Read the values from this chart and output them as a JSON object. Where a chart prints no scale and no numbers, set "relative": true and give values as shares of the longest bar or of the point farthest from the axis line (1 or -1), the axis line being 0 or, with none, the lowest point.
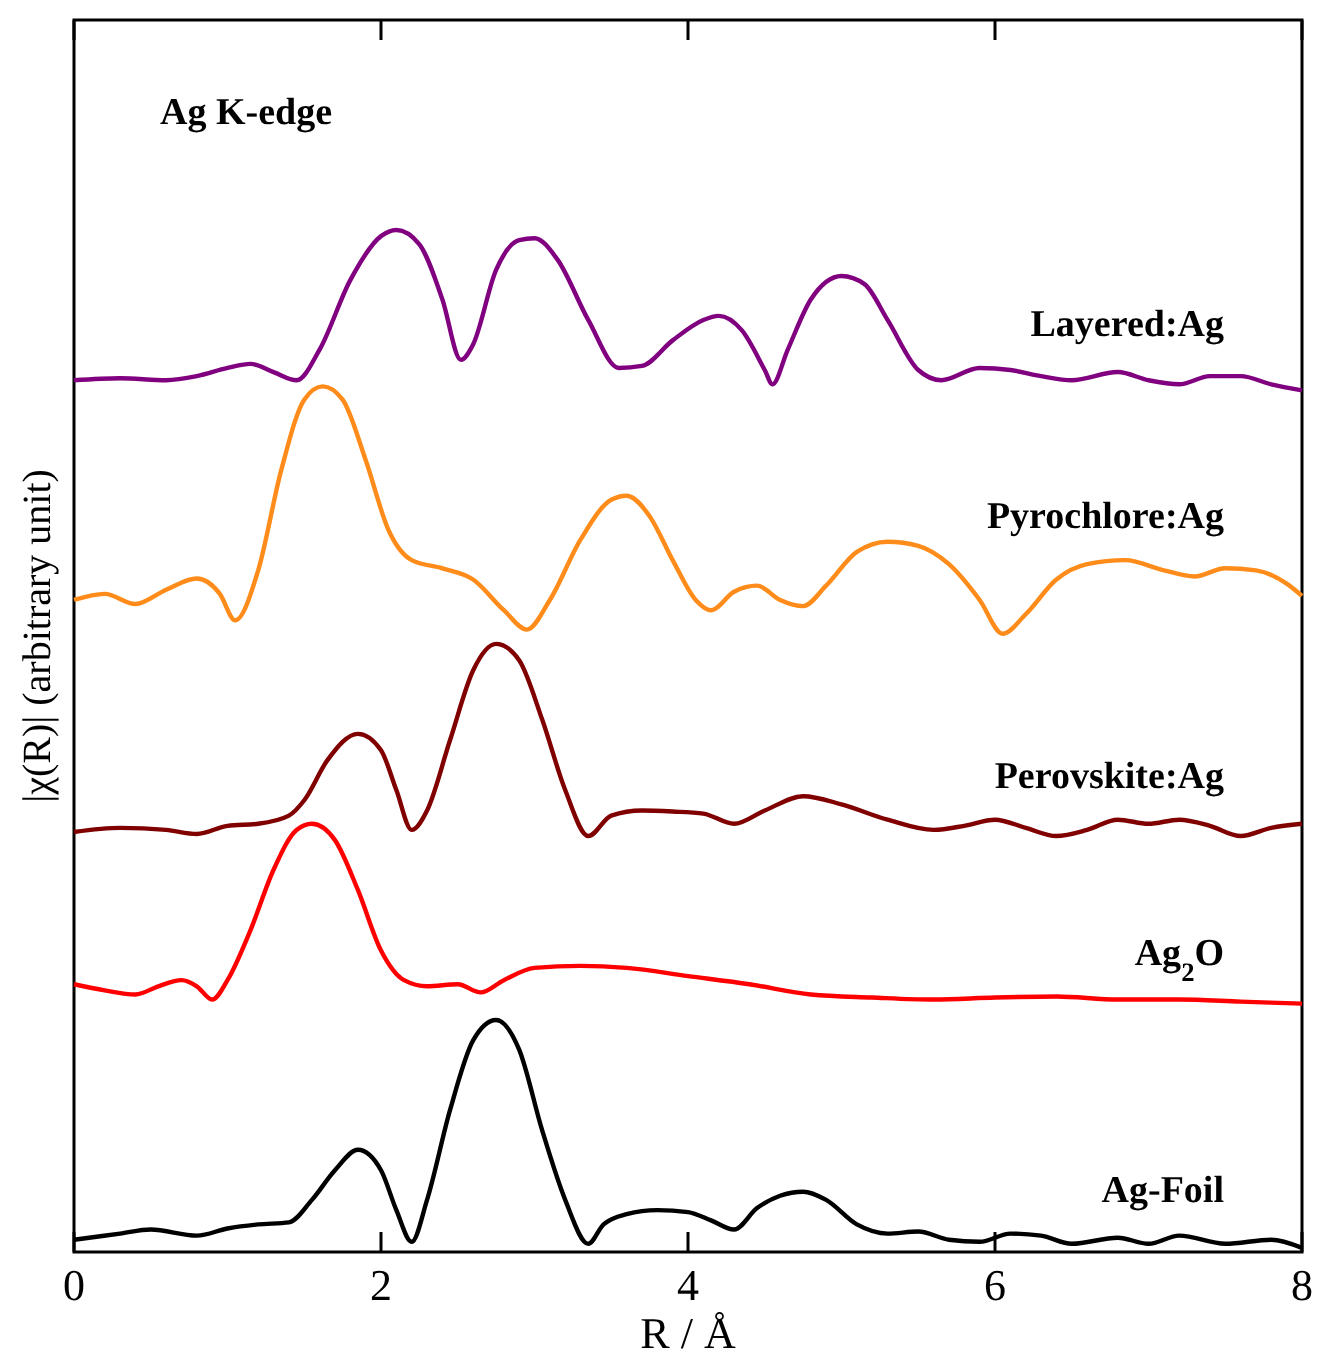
{
  "chart_data": {
    "type": "line",
    "relative": true,
    "title": "Ag K-edge",
    "xlabel": "R / Å",
    "ylabel": "|χ(R)| (arbitrary unit)",
    "xlim": [
      0,
      8
    ],
    "xticks": [
      0,
      2,
      4,
      6,
      8
    ],
    "series": [
      {
        "name": "Layered:Ag",
        "color": "#800080",
        "x": [
          0,
          0.3,
          0.6,
          0.8,
          1.0,
          1.15,
          1.3,
          1.45,
          1.6,
          1.8,
          2.0,
          2.1,
          2.25,
          2.4,
          2.52,
          2.6,
          2.75,
          2.9,
          3.0,
          3.15,
          3.35,
          3.55,
          3.7,
          3.9,
          4.1,
          4.2,
          4.35,
          4.5,
          4.55,
          4.65,
          4.8,
          5.0,
          5.15,
          5.3,
          5.5,
          5.65,
          5.9,
          6.1,
          6.3,
          6.5,
          6.8,
          7.0,
          7.2,
          7.4,
          7.6,
          7.8,
          8.0
        ],
        "values": [
          0.853,
          0.855,
          0.853,
          0.857,
          0.865,
          0.869,
          0.861,
          0.853,
          0.883,
          0.951,
          0.994,
          1,
          0.986,
          0.932,
          0.873,
          0.888,
          0.961,
          0.99,
          0.992,
          0.971,
          0.912,
          0.865,
          0.867,
          0.892,
          0.912,
          0.916,
          0.902,
          0.863,
          0.849,
          0.883,
          0.932,
          0.955,
          0.947,
          0.912,
          0.863,
          0.853,
          0.865,
          0.863,
          0.857,
          0.853,
          0.861,
          0.853,
          0.849,
          0.857,
          0.857,
          0.849,
          0.843
        ]
      },
      {
        "name": "Pyrochlore:Ag",
        "color": "#ff8c1a",
        "x": [
          0,
          0.2,
          0.4,
          0.6,
          0.8,
          0.95,
          1.05,
          1.2,
          1.35,
          1.5,
          1.62,
          1.75,
          1.9,
          2.05,
          2.2,
          2.4,
          2.6,
          2.8,
          2.95,
          3.1,
          3.3,
          3.5,
          3.6,
          3.75,
          3.9,
          4.05,
          4.15,
          4.3,
          4.45,
          4.6,
          4.75,
          4.9,
          5.1,
          5.3,
          5.5,
          5.7,
          5.9,
          6.05,
          6.2,
          6.4,
          6.6,
          6.85,
          7.1,
          7.3,
          7.5,
          7.7,
          7.9,
          8.0
        ],
        "values": [
          0.638,
          0.644,
          0.634,
          0.648,
          0.659,
          0.644,
          0.618,
          0.667,
          0.765,
          0.834,
          0.847,
          0.834,
          0.775,
          0.706,
          0.677,
          0.669,
          0.658,
          0.628,
          0.609,
          0.638,
          0.697,
          0.736,
          0.74,
          0.72,
          0.677,
          0.638,
          0.628,
          0.646,
          0.652,
          0.638,
          0.632,
          0.652,
          0.685,
          0.695,
          0.691,
          0.673,
          0.638,
          0.605,
          0.624,
          0.658,
          0.673,
          0.677,
          0.667,
          0.661,
          0.669,
          0.667,
          0.654,
          0.642
        ]
      },
      {
        "name": "Perovskite:Ag",
        "color": "#800000",
        "x": [
          0,
          0.3,
          0.6,
          0.8,
          1.0,
          1.2,
          1.4,
          1.5,
          1.65,
          1.85,
          2.0,
          2.1,
          2.2,
          2.3,
          2.45,
          2.6,
          2.75,
          2.9,
          3.05,
          3.2,
          3.35,
          3.5,
          3.7,
          3.9,
          4.1,
          4.3,
          4.5,
          4.75,
          5.0,
          5.3,
          5.6,
          5.8,
          6.0,
          6.2,
          6.4,
          6.6,
          6.8,
          7.0,
          7.2,
          7.4,
          7.6,
          7.8,
          8.0
        ],
        "values": [
          0.411,
          0.415,
          0.413,
          0.409,
          0.417,
          0.419,
          0.427,
          0.442,
          0.481,
          0.507,
          0.491,
          0.452,
          0.413,
          0.432,
          0.501,
          0.569,
          0.595,
          0.579,
          0.521,
          0.452,
          0.407,
          0.427,
          0.432,
          0.431,
          0.429,
          0.419,
          0.432,
          0.446,
          0.438,
          0.423,
          0.413,
          0.417,
          0.423,
          0.415,
          0.407,
          0.413,
          0.423,
          0.419,
          0.423,
          0.417,
          0.407,
          0.415,
          0.419
        ]
      },
      {
        "name": "Ag$_{2}$O",
        "color": "#ff0000",
        "x": [
          0,
          0.2,
          0.4,
          0.55,
          0.7,
          0.8,
          0.9,
          1.0,
          1.15,
          1.3,
          1.45,
          1.55,
          1.7,
          1.85,
          2.0,
          2.15,
          2.3,
          2.5,
          2.65,
          2.8,
          3.0,
          3.3,
          3.6,
          4.0,
          4.4,
          4.8,
          5.2,
          5.6,
          6.0,
          6.4,
          6.8,
          7.2,
          7.6,
          8.0
        ],
        "values": [
          0.262,
          0.256,
          0.252,
          0.26,
          0.266,
          0.26,
          0.247,
          0.266,
          0.315,
          0.374,
          0.413,
          0.419,
          0.403,
          0.354,
          0.295,
          0.266,
          0.26,
          0.262,
          0.254,
          0.266,
          0.278,
          0.28,
          0.278,
          0.27,
          0.262,
          0.252,
          0.249,
          0.247,
          0.249,
          0.25,
          0.247,
          0.247,
          0.245,
          0.243
        ]
      },
      {
        "name": "Ag-Foil",
        "color": "#000000",
        "x": [
          0,
          0.3,
          0.5,
          0.8,
          1.0,
          1.2,
          1.4,
          1.55,
          1.7,
          1.85,
          2.0,
          2.1,
          2.2,
          2.3,
          2.45,
          2.6,
          2.75,
          2.9,
          3.05,
          3.2,
          3.35,
          3.45,
          3.6,
          3.8,
          4.0,
          4.15,
          4.3,
          4.45,
          4.6,
          4.75,
          4.9,
          5.1,
          5.3,
          5.5,
          5.7,
          5.9,
          6.1,
          6.3,
          6.5,
          6.8,
          7.0,
          7.2,
          7.5,
          7.8,
          8.0
        ],
        "values": [
          0.012,
          0.018,
          0.022,
          0.016,
          0.023,
          0.027,
          0.029,
          0.051,
          0.08,
          0.1,
          0.08,
          0.041,
          0.01,
          0.051,
          0.139,
          0.207,
          0.227,
          0.198,
          0.119,
          0.051,
          0.008,
          0.027,
          0.037,
          0.041,
          0.039,
          0.031,
          0.022,
          0.043,
          0.055,
          0.059,
          0.051,
          0.027,
          0.018,
          0.02,
          0.012,
          0.01,
          0.018,
          0.016,
          0.008,
          0.014,
          0.008,
          0.016,
          0.008,
          0.012,
          0.004
        ]
      }
    ]
  }
}
